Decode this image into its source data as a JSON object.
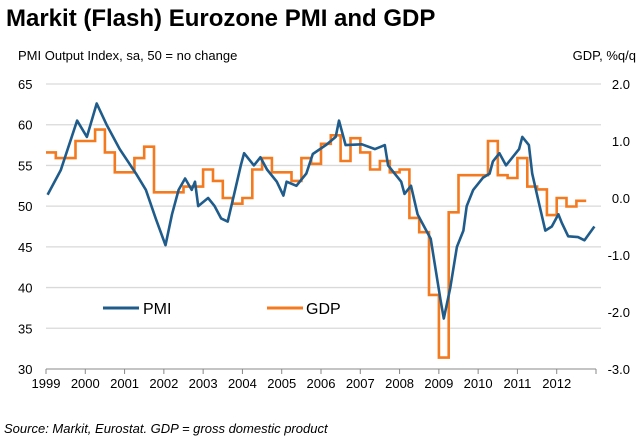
{
  "chart_data": {
    "type": "line",
    "title": "Markit (Flash) Eurozone PMI and GDP",
    "left_axis_label": "PMI Output Index, sa, 50 = no change",
    "right_axis_label": "GDP, %q/q",
    "source": "Source: Markit, Eurostat. GDP = gross domestic product",
    "x_range": [
      1999,
      2013
    ],
    "x_ticks": [
      "1999",
      "2000",
      "2001",
      "2002",
      "2003",
      "2004",
      "2005",
      "2006",
      "2007",
      "2008",
      "2009",
      "2010",
      "2011",
      "2012"
    ],
    "left_ylim": [
      30,
      65
    ],
    "left_ticks": [
      "30",
      "35",
      "40",
      "45",
      "50",
      "55",
      "60",
      "65"
    ],
    "right_ylim": [
      -3.0,
      2.0
    ],
    "right_ticks": [
      "-3.0",
      "-2.0",
      "-1.0",
      "0.0",
      "1.0",
      "2.0"
    ],
    "grid": true,
    "legend_placement": "bottom-left",
    "series": [
      {
        "name": "PMI",
        "axis": "left",
        "color": "#1f5c8b",
        "points": [
          [
            "1999-01",
            51.4
          ],
          [
            "1999-05",
            54.4
          ],
          [
            "1999-10",
            60.5
          ],
          [
            "2000-01",
            58.5
          ],
          [
            "2000-04",
            62.6
          ],
          [
            "2000-07",
            60.0
          ],
          [
            "2000-11",
            57.0
          ],
          [
            "2001-04",
            54.0
          ],
          [
            "2001-07",
            52.0
          ],
          [
            "2001-10",
            48.5
          ],
          [
            "2002-01",
            45.2
          ],
          [
            "2002-03",
            49.0
          ],
          [
            "2002-05",
            52.0
          ],
          [
            "2002-07",
            53.4
          ],
          [
            "2002-09",
            52.0
          ],
          [
            "2002-10",
            53.0
          ],
          [
            "2002-11",
            50.0
          ],
          [
            "2003-02",
            51.0
          ],
          [
            "2003-04",
            50.0
          ],
          [
            "2003-06",
            48.5
          ],
          [
            "2003-08",
            48.1
          ],
          [
            "2003-10",
            51.5
          ],
          [
            "2003-12",
            55.0
          ],
          [
            "2004-01",
            56.5
          ],
          [
            "2004-04",
            55.0
          ],
          [
            "2004-06",
            56.0
          ],
          [
            "2004-08",
            54.5
          ],
          [
            "2004-11",
            53.0
          ],
          [
            "2005-01",
            51.3
          ],
          [
            "2005-02",
            53.0
          ],
          [
            "2005-05",
            52.5
          ],
          [
            "2005-08",
            54.0
          ],
          [
            "2005-10",
            56.4
          ],
          [
            "2006-02",
            57.5
          ],
          [
            "2006-05",
            58.5
          ],
          [
            "2006-06",
            60.5
          ],
          [
            "2006-08",
            57.5
          ],
          [
            "2007-01",
            57.6
          ],
          [
            "2007-05",
            57.0
          ],
          [
            "2007-08",
            57.5
          ],
          [
            "2007-09",
            55.0
          ],
          [
            "2008-01",
            53.0
          ],
          [
            "2008-02",
            51.5
          ],
          [
            "2008-04",
            52.5
          ],
          [
            "2008-06",
            49.0
          ],
          [
            "2008-08",
            47.5
          ],
          [
            "2008-10",
            46.0
          ],
          [
            "2009-01",
            38.5
          ],
          [
            "2009-02",
            36.2
          ],
          [
            "2009-04",
            40.0
          ],
          [
            "2009-06",
            45.0
          ],
          [
            "2009-08",
            47.0
          ],
          [
            "2009-09",
            50.0
          ],
          [
            "2009-11",
            52.0
          ],
          [
            "2010-02",
            53.5
          ],
          [
            "2010-04",
            54.0
          ],
          [
            "2010-05",
            55.5
          ],
          [
            "2010-07",
            56.5
          ],
          [
            "2010-09",
            55.0
          ],
          [
            "2011-01",
            57.0
          ],
          [
            "2011-02",
            58.5
          ],
          [
            "2011-04",
            57.5
          ],
          [
            "2011-05",
            54.0
          ],
          [
            "2011-07",
            50.5
          ],
          [
            "2011-09",
            47.0
          ],
          [
            "2011-11",
            47.5
          ],
          [
            "2012-01",
            49.0
          ],
          [
            "2012-02",
            48.0
          ],
          [
            "2012-04",
            46.3
          ],
          [
            "2012-07",
            46.2
          ],
          [
            "2012-09",
            45.8
          ],
          [
            "2012-12",
            47.5
          ]
        ]
      },
      {
        "name": "GDP",
        "axis": "right",
        "color": "#f47a20",
        "quarters_start": "1999-Q1",
        "values": [
          0.8,
          0.7,
          0.7,
          1.0,
          1.0,
          1.2,
          0.8,
          0.45,
          0.45,
          0.7,
          0.9,
          0.1,
          0.1,
          0.1,
          0.2,
          0.2,
          0.5,
          0.3,
          0.0,
          -0.1,
          0.0,
          0.5,
          0.7,
          0.45,
          0.45,
          0.3,
          0.7,
          0.6,
          0.95,
          1.1,
          0.65,
          1.05,
          0.8,
          0.5,
          0.65,
          0.45,
          0.5,
          -0.35,
          -0.6,
          -1.7,
          -2.8,
          -0.25,
          0.4,
          0.4,
          0.4,
          1.0,
          0.4,
          0.35,
          0.7,
          0.2,
          0.15,
          -0.3,
          0.0,
          -0.15,
          -0.05
        ]
      }
    ]
  }
}
